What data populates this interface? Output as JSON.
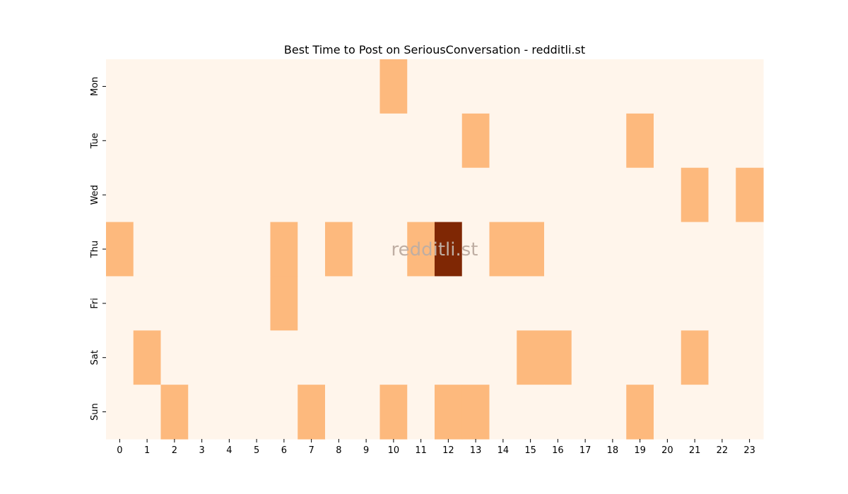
{
  "chart_data": {
    "type": "heatmap",
    "title": "Best Time to Post on SeriousConversation - redditli.st",
    "xlabel": "",
    "ylabel": "",
    "x": [
      "0",
      "1",
      "2",
      "3",
      "4",
      "5",
      "6",
      "7",
      "8",
      "9",
      "10",
      "11",
      "12",
      "13",
      "14",
      "15",
      "16",
      "17",
      "18",
      "19",
      "20",
      "21",
      "22",
      "23"
    ],
    "y": [
      "Mon",
      "Tue",
      "Wed",
      "Thu",
      "Fri",
      "Sat",
      "Sun"
    ],
    "values": [
      [
        0,
        0,
        0,
        0,
        0,
        0,
        0,
        0,
        0,
        0,
        1,
        0,
        0,
        0,
        0,
        0,
        0,
        0,
        0,
        0,
        0,
        0,
        0,
        0
      ],
      [
        0,
        0,
        0,
        0,
        0,
        0,
        0,
        0,
        0,
        0,
        0,
        0,
        0,
        1,
        0,
        0,
        0,
        0,
        0,
        1,
        0,
        0,
        0,
        0
      ],
      [
        0,
        0,
        0,
        0,
        0,
        0,
        0,
        0,
        0,
        0,
        0,
        0,
        0,
        0,
        0,
        0,
        0,
        0,
        0,
        0,
        0,
        1,
        0,
        1
      ],
      [
        1,
        0,
        0,
        0,
        0,
        0,
        1,
        0,
        1,
        0,
        0,
        1,
        2,
        0,
        1,
        1,
        0,
        0,
        0,
        0,
        0,
        0,
        0,
        0
      ],
      [
        0,
        0,
        0,
        0,
        0,
        0,
        1,
        0,
        0,
        0,
        0,
        0,
        0,
        0,
        0,
        0,
        0,
        0,
        0,
        0,
        0,
        0,
        0,
        0
      ],
      [
        0,
        1,
        0,
        0,
        0,
        0,
        0,
        0,
        0,
        0,
        0,
        0,
        0,
        0,
        0,
        1,
        1,
        0,
        0,
        0,
        0,
        1,
        0,
        0
      ],
      [
        0,
        0,
        1,
        0,
        0,
        0,
        0,
        1,
        0,
        0,
        1,
        0,
        1,
        1,
        0,
        0,
        0,
        0,
        0,
        1,
        0,
        0,
        0,
        0
      ]
    ],
    "colorscale": [
      "#fff5eb",
      "#fdb97d",
      "#7f2704"
    ],
    "colorbar": false,
    "grid": false,
    "watermark": "redditli.st",
    "watermark_color": "#bfaea3"
  }
}
